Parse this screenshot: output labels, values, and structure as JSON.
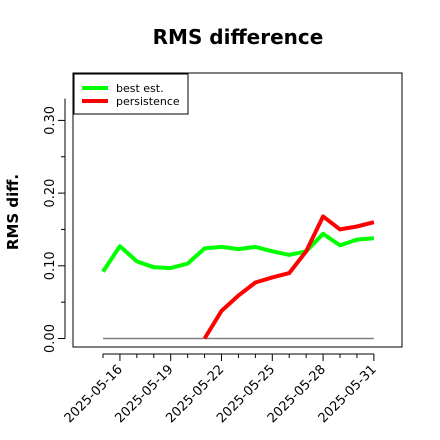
{
  "chart_data": {
    "type": "line",
    "title": "RMS difference",
    "ylabel": "RMS diff.",
    "xlabel": "",
    "ylim": [
      0,
      0.33
    ],
    "yticks": [
      "0.00",
      "0.10",
      "0.20",
      "0.30"
    ],
    "ytick_values": [
      0.0,
      0.1,
      0.2,
      0.3
    ],
    "x": [
      "2025-05-15",
      "2025-05-16",
      "2025-05-17",
      "2025-05-18",
      "2025-05-19",
      "2025-05-20",
      "2025-05-21",
      "2025-05-22",
      "2025-05-23",
      "2025-05-24",
      "2025-05-25",
      "2025-05-26",
      "2025-05-27",
      "2025-05-28",
      "2025-05-29",
      "2025-05-30",
      "2025-05-31"
    ],
    "xtick_labels": [
      "2025-05-16",
      "2025-05-19",
      "2025-05-22",
      "2025-05-25",
      "2025-05-28",
      "2025-05-31"
    ],
    "series": [
      {
        "name": "best est.",
        "color": "#00ff00",
        "values": [
          0.092,
          0.127,
          0.106,
          0.098,
          0.097,
          0.103,
          0.124,
          0.126,
          0.123,
          0.126,
          0.12,
          0.115,
          0.12,
          0.144,
          0.128,
          0.136,
          0.138
        ]
      },
      {
        "name": "persistence",
        "color": "#ff0000",
        "values": [
          null,
          null,
          null,
          null,
          null,
          null,
          0.0,
          0.038,
          0.059,
          0.077,
          0.084,
          0.09,
          0.12,
          0.168,
          0.15,
          0.154,
          0.16
        ]
      }
    ],
    "reference_line": {
      "y": 0.0,
      "color": "#808080"
    },
    "legend_position": "top-left",
    "grid": false
  }
}
